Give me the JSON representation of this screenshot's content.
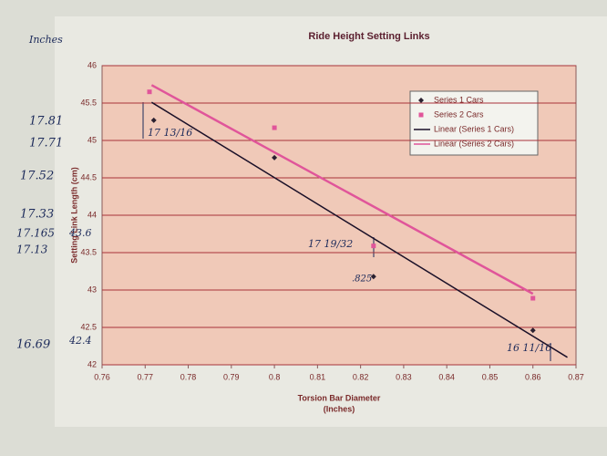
{
  "chart_data": {
    "type": "scatter",
    "title": "Ride Height Setting Links",
    "x_label": [
      "Torsion Bar Diameter",
      "(Inches)"
    ],
    "y_label": "Setting Link Length (cm)",
    "xlim": [
      0.76,
      0.87
    ],
    "xticks": [
      0.76,
      0.77,
      0.78,
      0.79,
      0.8,
      0.81,
      0.82,
      0.83,
      0.84,
      0.85,
      0.86,
      0.87
    ],
    "ylim": [
      42,
      46
    ],
    "yticks": [
      42,
      42.5,
      43,
      43.5,
      44,
      44.5,
      45,
      45.5,
      46
    ],
    "grid": true,
    "legend": "upper right",
    "series": [
      {
        "name": "Series 1 Cars",
        "color": "#2a2030",
        "marker": "diamond",
        "x": [
          0.772,
          0.8,
          0.823,
          0.86
        ],
        "values": [
          45.27,
          44.77,
          43.18,
          42.46
        ]
      },
      {
        "name": "Series 2 Cars",
        "color": "#e0559a",
        "marker": "square",
        "x": [
          0.771,
          0.8,
          0.823,
          0.86
        ],
        "values": [
          45.65,
          45.17,
          43.59,
          42.89
        ]
      }
    ],
    "trendlines": [
      {
        "name": "Linear (Series 1 Cars)",
        "color": "#1a1028",
        "x": [
          0.7715,
          0.868
        ],
        "values": [
          45.51,
          42.1
        ]
      },
      {
        "name": "Linear (Series 2 Cars)",
        "color": "#e0559a",
        "x": [
          0.7715,
          0.86
        ],
        "values": [
          45.74,
          42.95
        ]
      }
    ],
    "annotations": [
      "Inches",
      "17.81",
      "17.71",
      "17.52",
      "17.33",
      "17.165",
      "17.13",
      "43.6",
      "16.69",
      "42.4",
      "17 13/16",
      "17 19/32",
      ".825",
      "16 11/16"
    ]
  }
}
